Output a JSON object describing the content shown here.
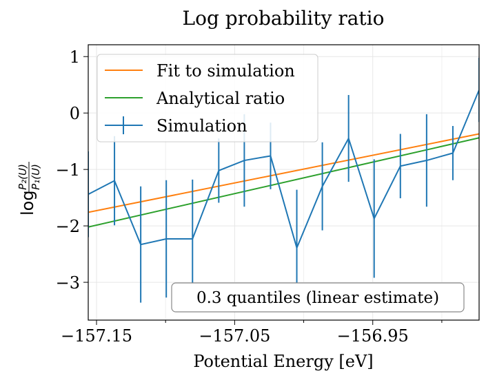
{
  "chart_data": {
    "type": "line",
    "title": "Log probability ratio",
    "xlabel": "Potential Energy [eV]",
    "ylabel": {
      "prefix": "log",
      "numerator": "P₂(U)",
      "denominator": "P₁(U)"
    },
    "xlim": [
      -157.156,
      -156.873
    ],
    "ylim": [
      -3.67,
      1.21
    ],
    "xticks": [
      -157.15,
      -157.05,
      -156.95
    ],
    "xtick_labels": [
      "−157.15",
      "−157.05",
      "−156.95"
    ],
    "xminor_ticks": [
      -157.1,
      -157.0,
      -156.9
    ],
    "yticks": [
      1,
      0,
      -1,
      -2,
      -3
    ],
    "ytick_labels": [
      "1",
      "0",
      "−1",
      "−2",
      "−3"
    ],
    "grid": true,
    "legend_position": "upper-left",
    "annotation": "0.3 quantiles (linear estimate)",
    "series": [
      {
        "name": "Fit to simulation",
        "kind": "line",
        "color": "#ff7f0e",
        "x": [
          -157.156,
          -156.873
        ],
        "y": [
          -1.76,
          -0.37
        ]
      },
      {
        "name": "Analytical ratio",
        "kind": "line",
        "color": "#2ca02c",
        "x": [
          -157.156,
          -156.873
        ],
        "y": [
          -2.02,
          -0.44
        ]
      },
      {
        "name": "Simulation",
        "kind": "errorbar",
        "color": "#1f77b4",
        "x": [
          -157.156,
          -157.137,
          -157.118,
          -157.0995,
          -157.0805,
          -157.0615,
          -157.043,
          -157.024,
          -157.005,
          -156.9865,
          -156.9675,
          -156.949,
          -156.93,
          -156.911,
          -156.892,
          -156.873
        ],
        "y": [
          -1.44,
          -1.2,
          -2.33,
          -2.23,
          -2.23,
          -1.02,
          -0.84,
          -0.76,
          -2.39,
          -1.3,
          -0.45,
          -1.87,
          -0.94,
          -0.84,
          -0.71,
          0.41
        ],
        "yerr": [
          0.76,
          0.79,
          1.03,
          1.04,
          1.05,
          0.57,
          0.82,
          0.59,
          1.03,
          0.78,
          0.77,
          1.05,
          0.57,
          0.82,
          0.48,
          0.57
        ]
      }
    ]
  }
}
